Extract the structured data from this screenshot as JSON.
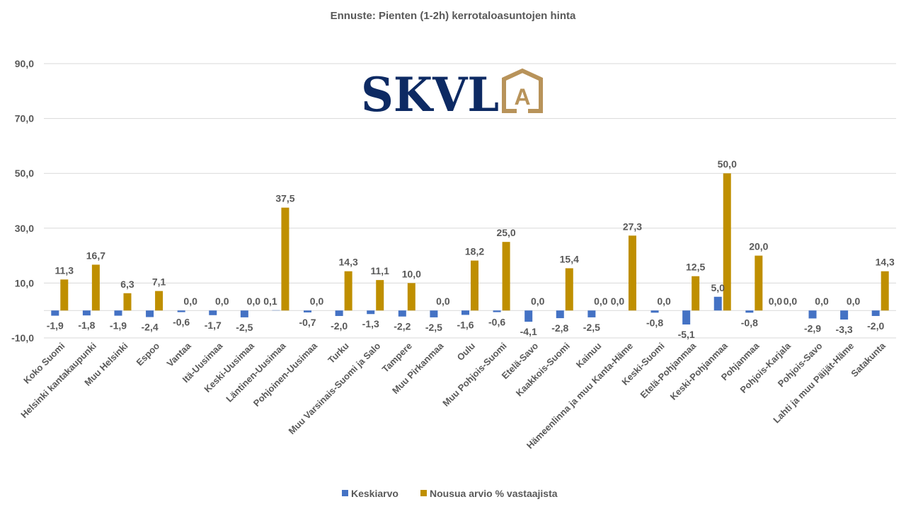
{
  "chart_data": {
    "type": "bar",
    "title": "Ennuste: Pienten (1-2h) kerrotaloasuntojen hinta",
    "xlabel": "",
    "ylabel": "",
    "ylim": [
      -10,
      90
    ],
    "yticks": [
      -10,
      10,
      30,
      50,
      70,
      90
    ],
    "ytick_labels": [
      "-10,0",
      "10,0",
      "30,0",
      "50,0",
      "70,0",
      "90,0"
    ],
    "grid": true,
    "legend_position": "bottom",
    "categories": [
      "Koko Suomi",
      "Helsinki kantakaupunki",
      "Muu Helsinki",
      "Espoo",
      "Vantaa",
      "Itä-Uusimaa",
      "Keski-Uusimaa",
      "Läntinen-Uusimaa",
      "Pohjoinen-Uusimaa",
      "Turku",
      "Muu Varsinais-Suomi ja Salo",
      "Tampere",
      "Muu Pirkanmaa",
      "Oulu",
      "Muu Pohjois-Suomi",
      "Etelä-Savo",
      "Kaakkois-Suomi",
      "Kainuu",
      "Hämeenlinna ja muu Kanta-Häme",
      "Keski-Suomi",
      "Etelä-Pohjanmaa",
      "Keski-Pohjanmaa",
      "Pohjanmaa",
      "Pohjois-Karjala",
      "Pohjois-Savo",
      "Lahti ja muu Päijät-Häme",
      "Satakunta"
    ],
    "series": [
      {
        "name": "Keskiarvo",
        "color": "#4472c4",
        "values": [
          -1.9,
          -1.8,
          -1.9,
          -2.4,
          -0.6,
          -1.7,
          -2.5,
          0.1,
          -0.7,
          -2.0,
          -1.3,
          -2.2,
          -2.5,
          -1.6,
          -0.6,
          -4.1,
          -2.8,
          -2.5,
          0.0,
          -0.8,
          -5.1,
          5.0,
          -0.8,
          0.0,
          -2.9,
          -3.3,
          -2.0
        ],
        "labels": [
          "-1,9",
          "-1,8",
          "-1,9",
          "-2,4",
          "-0,6",
          "-1,7",
          "-2,5",
          "0,1",
          "-0,7",
          "-2,0",
          "-1,3",
          "-2,2",
          "-2,5",
          "-1,6",
          "-0,6",
          "-4,1",
          "-2,8",
          "-2,5",
          "0,0",
          "-0,8",
          "-5,1",
          "5,0",
          "-0,8",
          "0,0",
          "-2,9",
          "-3,3",
          "-2,0"
        ]
      },
      {
        "name": "Nousua arvio % vastaajista",
        "color": "#bf8f00",
        "values": [
          11.3,
          16.7,
          6.3,
          7.1,
          0.0,
          0.0,
          0.0,
          37.5,
          0.0,
          14.3,
          11.1,
          10.0,
          0.0,
          18.2,
          25.0,
          0.0,
          15.4,
          0.0,
          27.3,
          0.0,
          12.5,
          50.0,
          20.0,
          0.0,
          0.0,
          0.0,
          14.3
        ],
        "labels": [
          "11,3",
          "16,7",
          "6,3",
          "7,1",
          "0,0",
          "0,0",
          "0,0",
          "37,5",
          "0,0",
          "14,3",
          "11,1",
          "10,0",
          "0,0",
          "18,2",
          "25,0",
          "0,0",
          "15,4",
          "0,0",
          "27,3",
          "0,0",
          "12,5",
          "50,0",
          "20,0",
          "0,0",
          "0,0",
          "0,0",
          "14,3"
        ]
      }
    ]
  },
  "logo": {
    "text": "SKVL",
    "badge_letter": "A",
    "primary_color": "#0d2a63",
    "accent_color": "#b8935a"
  },
  "colors": {
    "text": "#595959",
    "grid": "#d9d9d9"
  }
}
